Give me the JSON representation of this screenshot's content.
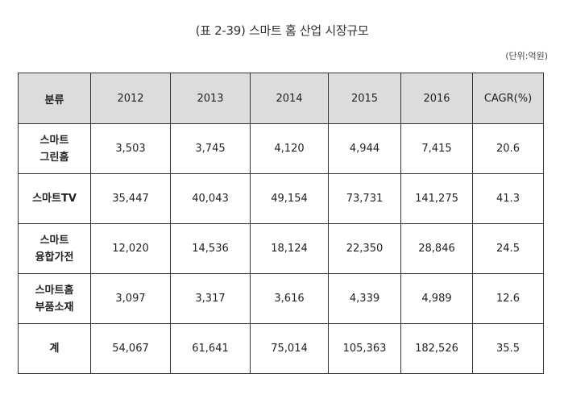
{
  "title": "(표 2-39) 스마트 홈 산업 시장규모",
  "unit": "(단위:억원)",
  "table": {
    "headers": [
      "분류",
      "2012",
      "2013",
      "2014",
      "2015",
      "2016",
      "CAGR(%)"
    ],
    "rows": [
      {
        "label_line1": "스마트",
        "label_line2": "그린홈",
        "values": [
          "3,503",
          "3,745",
          "4,120",
          "4,944",
          "7,415",
          "20.6"
        ]
      },
      {
        "label_line1": "스마트TV",
        "label_line2": "",
        "values": [
          "35,447",
          "40,043",
          "49,154",
          "73,731",
          "141,275",
          "41.3"
        ]
      },
      {
        "label_line1": "스마트",
        "label_line2": "융합가전",
        "values": [
          "12,020",
          "14,536",
          "18,124",
          "22,350",
          "28,846",
          "24.5"
        ]
      },
      {
        "label_line1": "스마트홈",
        "label_line2": "부품소재",
        "values": [
          "3,097",
          "3,317",
          "3,616",
          "4,339",
          "4,989",
          "12.6"
        ]
      },
      {
        "label_line1": "계",
        "label_line2": "",
        "values": [
          "54,067",
          "61,641",
          "75,014",
          "105,363",
          "182,526",
          "35.5"
        ]
      }
    ]
  }
}
